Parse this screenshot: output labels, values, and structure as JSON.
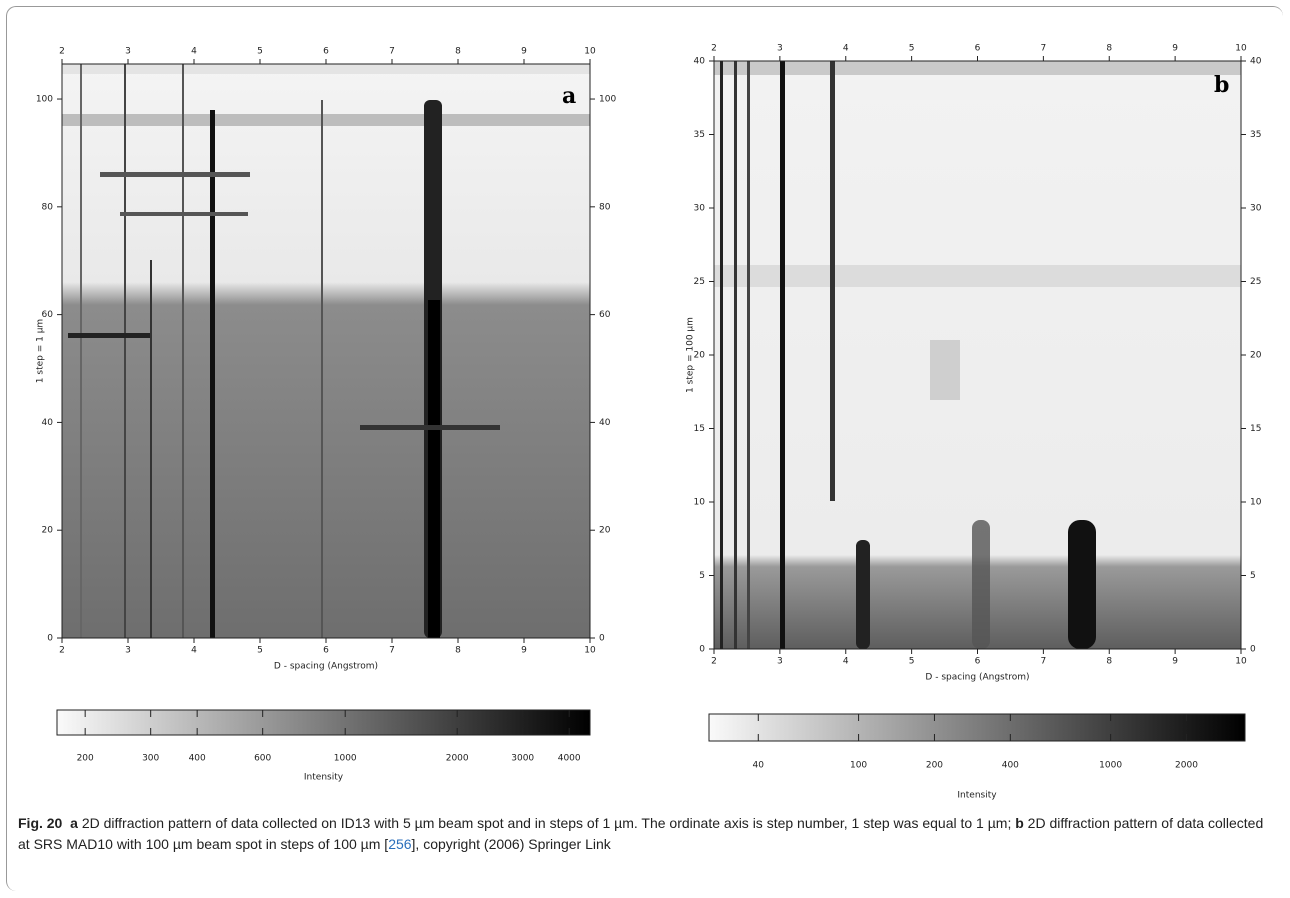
{
  "figure": {
    "panels": [
      {
        "type": "heatmap",
        "label": "a",
        "x_label": "D - spacing (Angstrom)",
        "y_label": "1 step = 1 µm",
        "xlim": [
          2,
          10
        ],
        "xticks": [
          2,
          3,
          4,
          5,
          6,
          7,
          8,
          9,
          10
        ],
        "ylim": [
          0,
          106.5
        ],
        "yticks": [
          0,
          20,
          40,
          60,
          80,
          100
        ],
        "colorbar": {
          "label": "Intensity",
          "log": true,
          "lim": [
            168,
            4550
          ],
          "ticks": [
            200,
            300,
            400,
            600,
            1000,
            2000,
            3000,
            4000
          ]
        }
      },
      {
        "type": "heatmap",
        "label": "b",
        "x_label": "D - spacing (Angstrom)",
        "y_label": "1 step = 100 µm",
        "xlim": [
          2,
          10
        ],
        "xticks": [
          2,
          3,
          4,
          5,
          6,
          7,
          8,
          9,
          10
        ],
        "ylim": [
          0,
          40
        ],
        "yticks": [
          0,
          5,
          10,
          15,
          20,
          25,
          30,
          35,
          40
        ],
        "colorbar": {
          "label": "Intensity",
          "log": true,
          "lim": [
            25.5,
            3413
          ],
          "ticks": [
            40,
            100,
            200,
            400,
            1000,
            2000
          ]
        }
      }
    ],
    "caption": {
      "figure_number": "Fig. 20",
      "part_a_label": "a",
      "part_a_text": " 2D diffraction pattern of data collected on ID13 with 5 µm beam spot and in steps of 1 µm. The ordinate axis is step number, 1 step was equal to 1 µm; ",
      "part_b_label": "b",
      "part_b_text": " 2D diffraction pattern of data collected at SRS MAD10 with 100 µm beam spot in steps of 100 µm [",
      "reference": "256",
      "tail": "], copyright (2006) Springer Link"
    }
  }
}
